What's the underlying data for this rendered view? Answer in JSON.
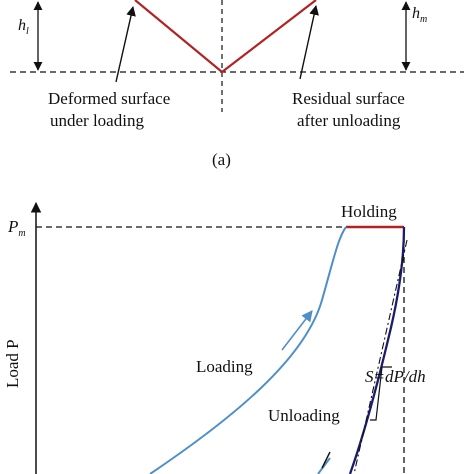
{
  "panel_a": {
    "h1_label": "h",
    "h1_sub": "l",
    "hm_label": "h",
    "hm_sub": "m",
    "deformed_line1": "Deformed surface",
    "deformed_line2": "under loading",
    "residual_line1": "Residual surface",
    "residual_line2": "after unloading",
    "panel_label": "(a)",
    "colors": {
      "indent": "#b22222"
    }
  },
  "panel_b": {
    "holding_label": "Holding",
    "pm_label": "P",
    "pm_sub": "m",
    "ylabel": "Load P",
    "loading_label": "Loading",
    "unloading_label": "Unloading",
    "stiffness_label": "S=dP/dh",
    "colors": {
      "loading": "#4f8fc8",
      "unloading": "#1c1c6e",
      "holding": "#b22222"
    }
  }
}
